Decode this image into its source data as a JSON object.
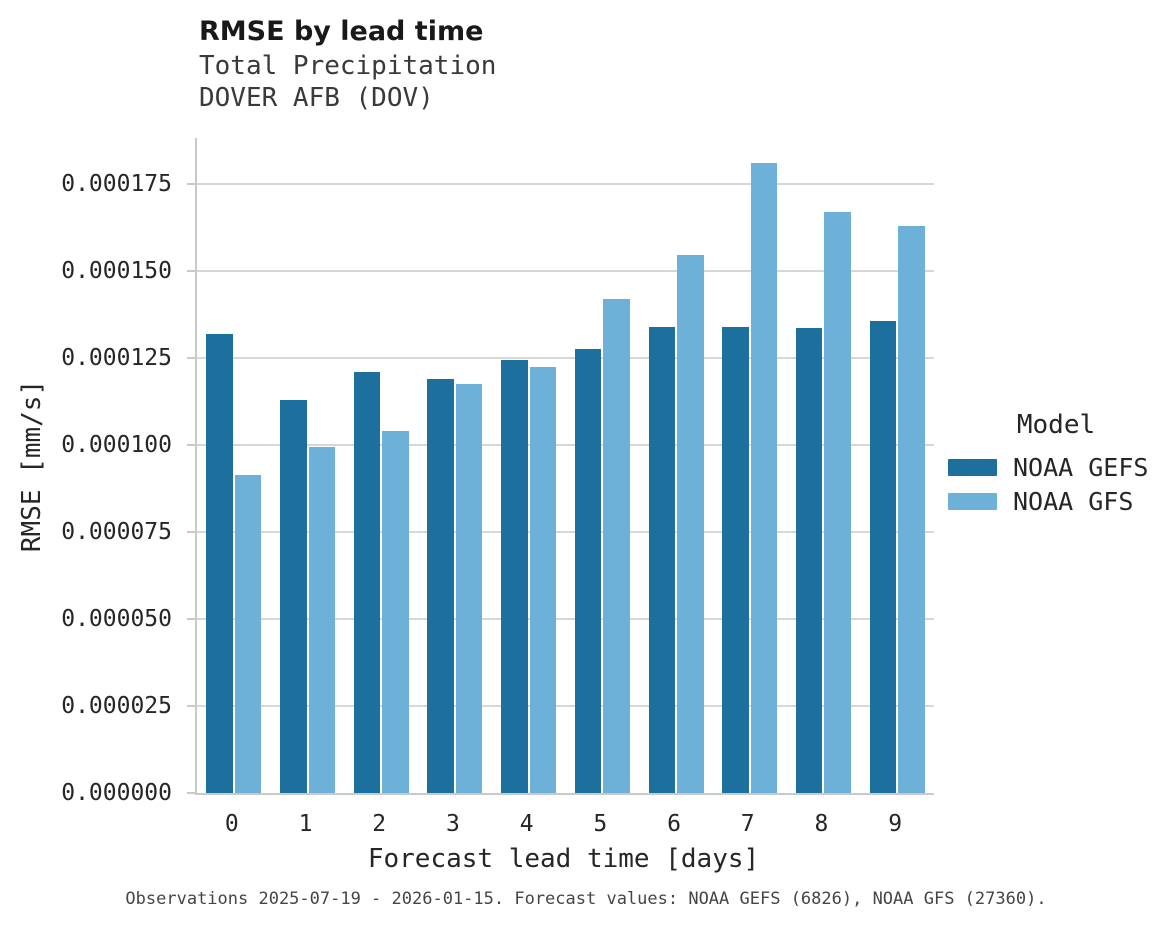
{
  "header": {
    "title": "RMSE by lead time",
    "subtitle_line1": "Total Precipitation",
    "subtitle_line2": "DOVER AFB (DOV)"
  },
  "legend": {
    "title": "Model",
    "entries": [
      {
        "label": "NOAA GEFS",
        "color": "#1d6f9e"
      },
      {
        "label": "NOAA GFS",
        "color": "#6db1d8"
      }
    ]
  },
  "caption": "Observations 2025-07-19 - 2026-01-15. Forecast values: NOAA GEFS (6826), NOAA GFS (27360).",
  "colors": {
    "gefs_bar": "#1d6f9e",
    "gfs_bar": "#6db1d8",
    "gridline": "#d7d7d7",
    "axis_spine": "#c9c9c9",
    "text": "#262626"
  },
  "chart_data": {
    "type": "bar",
    "title": "RMSE by lead time",
    "subtitle": [
      "Total Precipitation",
      "DOVER AFB (DOV)"
    ],
    "categories": [
      "0",
      "1",
      "2",
      "3",
      "4",
      "5",
      "6",
      "7",
      "8",
      "9"
    ],
    "series": [
      {
        "name": "NOAA GEFS",
        "color": "#1d6f9e",
        "values": [
          0.000132,
          0.000113,
          0.000121,
          0.000119,
          0.0001245,
          0.0001275,
          0.000134,
          0.000134,
          0.0001335,
          0.0001355
        ]
      },
      {
        "name": "NOAA GFS",
        "color": "#6db1d8",
        "values": [
          9.15e-05,
          9.95e-05,
          0.000104,
          0.0001175,
          0.0001225,
          0.000142,
          0.0001545,
          0.000181,
          0.000167,
          0.000163
        ]
      }
    ],
    "xlabel": "Forecast lead time [days]",
    "ylabel": "RMSE [mm/s]",
    "ylim": [
      0,
      0.0001882
    ],
    "ytick_values": [
      0,
      2.5e-05,
      5e-05,
      7.5e-05,
      0.0001,
      0.000125,
      0.00015,
      0.000175
    ],
    "ytick_labels": [
      "0.000000",
      "0.000025",
      "0.000050",
      "0.000075",
      "0.000100",
      "0.000125",
      "0.000150",
      "0.000175"
    ],
    "grid": "horizontal",
    "legend_title": "Model",
    "legend_position": "center-right"
  }
}
